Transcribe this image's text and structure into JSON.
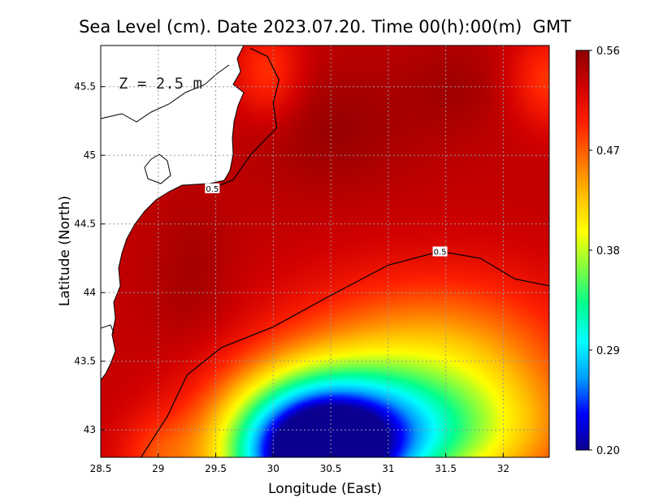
{
  "chart_data": {
    "type": "heatmap",
    "title": "Sea Level (cm). Date 2023.07.20. Time 00(h):00(m)  GMT",
    "xlabel": "Longitude (East)",
    "ylabel": "Latitude (North)",
    "annotation": "Z = 2.5 m",
    "xlim": [
      28.5,
      32.4
    ],
    "ylim": [
      42.8,
      45.8
    ],
    "x_ticks": [
      28.5,
      29,
      29.5,
      30,
      30.5,
      31,
      31.5,
      32
    ],
    "x_tick_labels": [
      "28.5",
      "29",
      "29.5",
      "30",
      "30.5",
      "31",
      "31.5",
      "32"
    ],
    "y_ticks": [
      43,
      43.5,
      44,
      44.5,
      45,
      45.5
    ],
    "y_tick_labels": [
      "43",
      "43.5",
      "44",
      "44.5",
      "45",
      "45.5"
    ],
    "grid": true,
    "colorbar": {
      "range": [
        0.2,
        0.56
      ],
      "tick_values": [
        0.56,
        0.47,
        0.38,
        0.29,
        0.2
      ],
      "tick_labels": [
        "0.56",
        "0.47",
        "0.38",
        "0.29",
        "0.20"
      ],
      "placement": "right"
    },
    "contour_labels": [
      "0.5",
      "0.5"
    ],
    "contour_lines": [
      {
        "level": 0.5,
        "label_at": [
          29.47,
          44.76
        ],
        "points": [
          [
            29.8,
            45.78
          ],
          [
            29.95,
            45.72
          ],
          [
            30.05,
            45.55
          ],
          [
            30.0,
            45.38
          ],
          [
            30.03,
            45.2
          ],
          [
            29.82,
            45.02
          ],
          [
            29.65,
            44.82
          ],
          [
            29.47,
            44.76
          ]
        ]
      },
      {
        "level": 0.5,
        "label_at": [
          31.45,
          44.3
        ],
        "points": [
          [
            28.85,
            42.8
          ],
          [
            29.08,
            43.1
          ],
          [
            29.25,
            43.4
          ],
          [
            29.55,
            43.6
          ],
          [
            30.0,
            43.75
          ],
          [
            30.5,
            43.98
          ],
          [
            31.0,
            44.2
          ],
          [
            31.45,
            44.3
          ],
          [
            31.8,
            44.25
          ],
          [
            32.1,
            44.1
          ],
          [
            32.4,
            44.05
          ]
        ]
      }
    ],
    "colormap": [
      "#0a0090",
      "#0000ff",
      "#00a0ff",
      "#00ffff",
      "#00ff90",
      "#80ff40",
      "#ffff00",
      "#ffc000",
      "#ff7000",
      "#ff2000",
      "#d00000",
      "#900000"
    ],
    "fields": {
      "base": 0.535,
      "blobs": [
        {
          "x": 30.35,
          "y": 42.8,
          "sx": 0.75,
          "sy": 0.55,
          "v": -0.31
        },
        {
          "x": 31.1,
          "y": 42.95,
          "sx": 1.3,
          "sy": 0.5,
          "v": -0.17
        },
        {
          "x": 31.4,
          "y": 43.55,
          "sx": 1.2,
          "sy": 0.6,
          "v": -0.09
        },
        {
          "x": 29.0,
          "y": 42.8,
          "sx": 0.35,
          "sy": 0.3,
          "v": -0.04
        },
        {
          "x": 30.5,
          "y": 45.2,
          "sx": 0.7,
          "sy": 0.45,
          "v": 0.02
        },
        {
          "x": 29.3,
          "y": 44.1,
          "sx": 0.35,
          "sy": 0.55,
          "v": 0.015
        },
        {
          "x": 31.6,
          "y": 45.5,
          "sx": 0.5,
          "sy": 0.35,
          "v": 0.015
        },
        {
          "x": 32.4,
          "y": 45.55,
          "sx": 0.35,
          "sy": 0.35,
          "v": -0.05
        },
        {
          "x": 29.95,
          "y": 45.6,
          "sx": 0.3,
          "sy": 0.35,
          "v": -0.05
        }
      ]
    }
  }
}
